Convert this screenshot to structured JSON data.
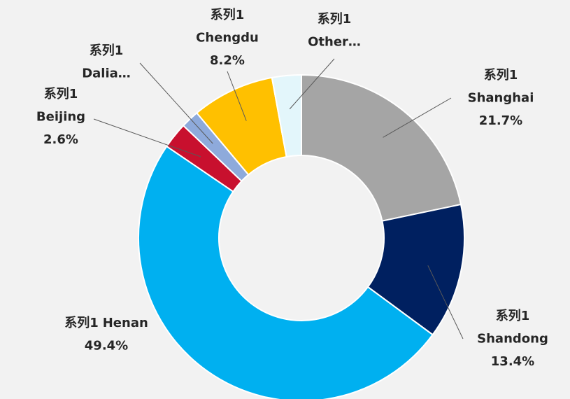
{
  "chart_data": {
    "type": "donut",
    "categories": [
      "Shanghai",
      "Shandong",
      "Henan",
      "Beijing",
      "Dalia…",
      "Chengdu",
      "Other…"
    ],
    "series": [
      {
        "name": "系列1",
        "values": [
          21.7,
          13.4,
          49.4,
          2.6,
          1.8,
          8.2,
          2.9
        ],
        "value_labels": [
          "21.7%",
          "13.4%",
          "49.4%",
          "2.6%",
          null,
          "8.2%",
          null
        ]
      }
    ],
    "colors": [
      "#a5a5a5",
      "#002060",
      "#00b0f0",
      "#c8102e",
      "#8eaadb",
      "#ffc000",
      "#e3f6fb"
    ]
  }
}
